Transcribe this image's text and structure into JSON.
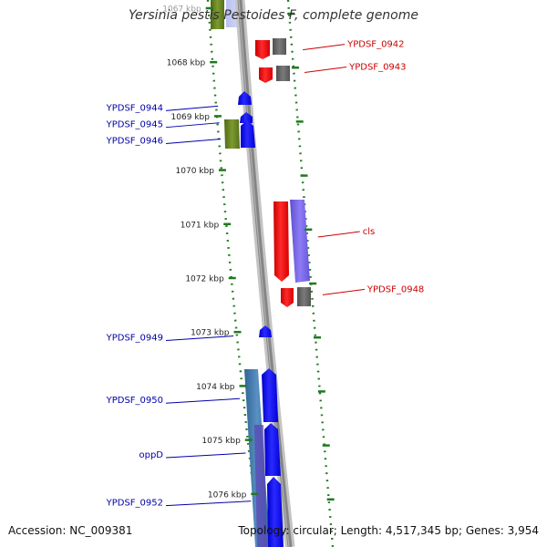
{
  "title": "Yersinia pestis Pestoides F, complete genome",
  "footer": {
    "accession": "Accession: NC_009381",
    "summary": "Topology: circular; Length: 4,517,345 bp; Genes: 3,954"
  },
  "colors": {
    "backbone": "#8c8c8c",
    "forward_cds": "#0000ff",
    "reverse_cds": "#ff0000",
    "gray_feature": "#6f6f6f",
    "olive_feature": "#6e8a23",
    "purple_feature": "#7b68ee",
    "steel_feature": "#4a7fb0",
    "tick_mark": "#1f7a1f",
    "label_right": "#cc0000",
    "label_left": "#0000aa",
    "axis_label": "#222222"
  },
  "axis": {
    "ticks": [
      {
        "label": "1067 kbp",
        "value": 1067
      },
      {
        "label": "1068 kbp",
        "value": 1068
      },
      {
        "label": "1069 kbp",
        "value": 1069
      },
      {
        "label": "1070 kbp",
        "value": 1070
      },
      {
        "label": "1071 kbp",
        "value": 1071
      },
      {
        "label": "1072 kbp",
        "value": 1072
      },
      {
        "label": "1073 kbp",
        "value": 1073
      },
      {
        "label": "1074 kbp",
        "value": 1074
      },
      {
        "label": "1075 kbp",
        "value": 1075
      },
      {
        "label": "1076 kbp",
        "value": 1076
      }
    ]
  },
  "genes_right": [
    {
      "label": "YPDSF_0942",
      "kbp": 1067.72
    },
    {
      "label": "YPDSF_0943",
      "kbp": 1068.14
    },
    {
      "label": "cls",
      "kbp": 1071.19
    },
    {
      "label": "YPDSF_0948",
      "kbp": 1072.26
    }
  ],
  "genes_left": [
    {
      "label": "YPDSF_0944",
      "kbp": 1068.83
    },
    {
      "label": "YPDSF_0945",
      "kbp": 1069.14
    },
    {
      "label": "YPDSF_0946",
      "kbp": 1069.44
    },
    {
      "label": "YPDSF_0949",
      "kbp": 1073.09
    },
    {
      "label": "YPDSF_0950",
      "kbp": 1074.25
    },
    {
      "label": "oppD",
      "kbp": 1075.26
    },
    {
      "label": "YPDSF_0952",
      "kbp": 1076.15
    }
  ]
}
